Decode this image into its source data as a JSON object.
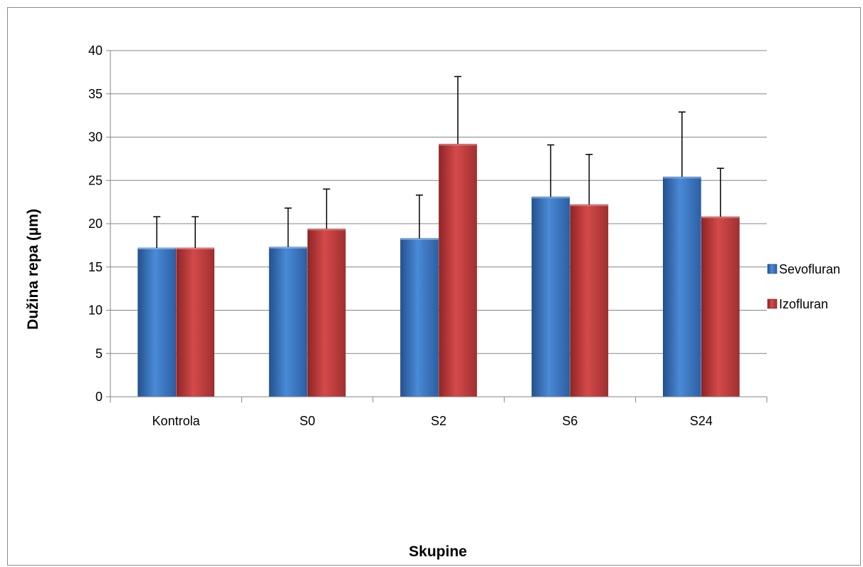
{
  "chart_data": {
    "type": "bar",
    "xlabel": "Skupine",
    "ylabel": "Dužina repa  (µm)",
    "categories": [
      "Kontrola",
      "S0",
      "S2",
      "S6",
      "S24"
    ],
    "series": [
      {
        "name": "Sevofluran",
        "color": "#3a76c4",
        "values": [
          17.2,
          17.3,
          18.3,
          23.1,
          25.4
        ],
        "errors": [
          3.6,
          4.5,
          5.0,
          6.0,
          7.5
        ]
      },
      {
        "name": "Izofluran",
        "color": "#c0393a",
        "values": [
          17.2,
          19.4,
          29.2,
          22.2,
          20.8
        ],
        "errors": [
          3.6,
          4.6,
          7.8,
          5.8,
          5.6
        ]
      }
    ],
    "ylim": [
      0,
      40
    ],
    "yticks": [
      0,
      5,
      10,
      15,
      20,
      25,
      30,
      35,
      40
    ],
    "grid": true,
    "legend_position": "right"
  }
}
